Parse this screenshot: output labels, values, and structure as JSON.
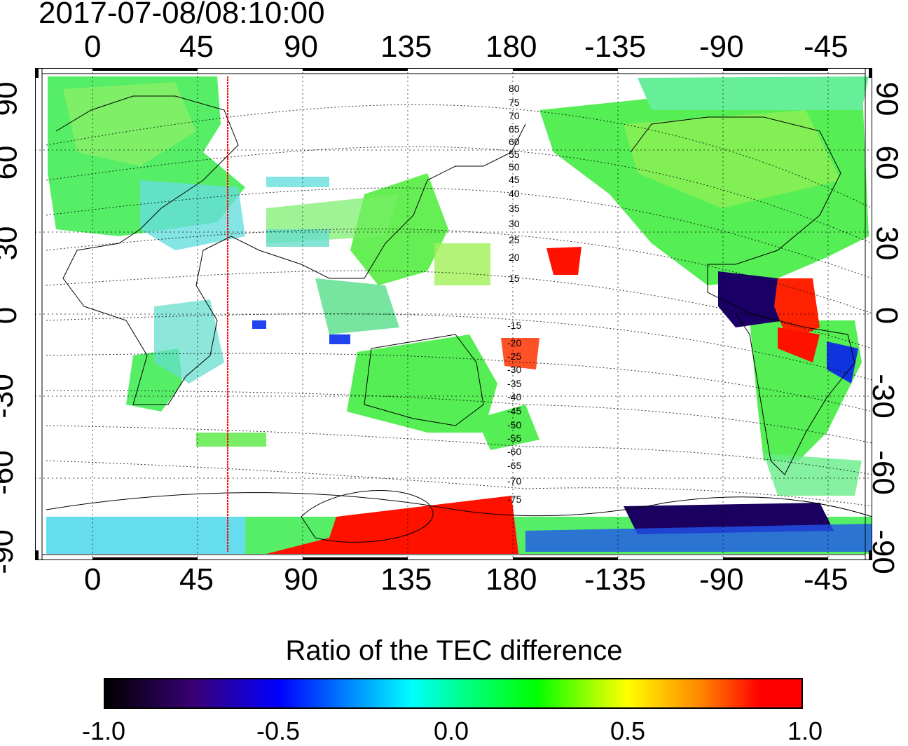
{
  "timestamp": "2017-07-08/08:10:00",
  "map": {
    "lon_ticks": [
      "0",
      "45",
      "90",
      "135",
      "180",
      "-135",
      "-90",
      "-45"
    ],
    "lat_ticks": [
      "90",
      "60",
      "30",
      "0",
      "-30",
      "-60",
      "-90"
    ],
    "contour_labels_north": [
      "80",
      "75",
      "70",
      "65",
      "60",
      "55",
      "50",
      "45",
      "40",
      "35",
      "30",
      "25",
      "20",
      "15"
    ],
    "contour_labels_south": [
      "-15",
      "-20",
      "-25",
      "-30",
      "-35",
      "-40",
      "-45",
      "-50",
      "-55",
      "-60",
      "-65",
      "-70",
      "-75"
    ],
    "marker_line_longitude": 57,
    "marker_line_color": "#ff0000",
    "patch_colors": {
      "positive": "#ff0000",
      "negative": "#1a0060",
      "neutral": "#55ee55"
    }
  },
  "colorbar": {
    "title": "Ratio of the TEC difference",
    "labels": [
      "-1.0",
      "-0.5",
      "0.0",
      "0.5",
      "1.0"
    ],
    "range": [
      -1.0,
      1.0
    ]
  }
}
